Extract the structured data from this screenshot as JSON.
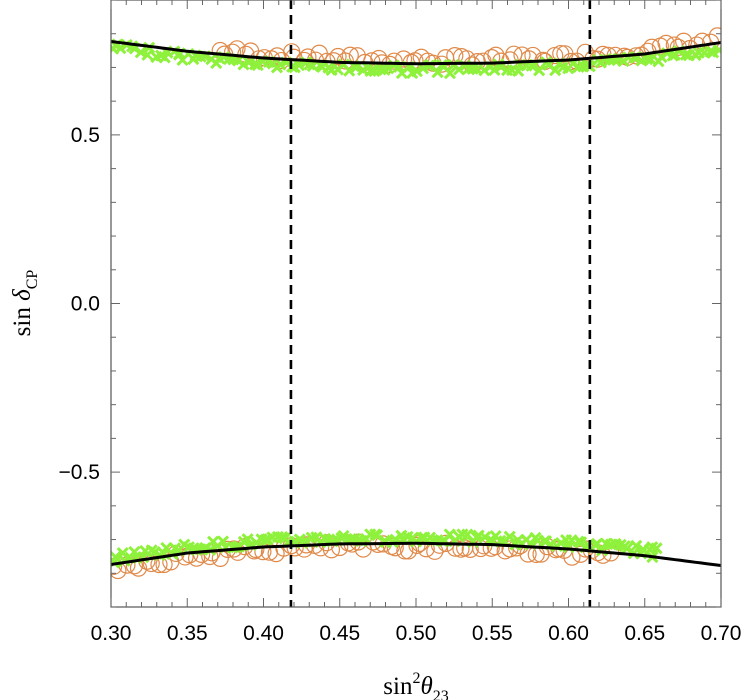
{
  "chart_data": {
    "type": "scatter",
    "xlabel": {
      "base": "sin",
      "sup": "2",
      "var": "θ",
      "sub": "23"
    },
    "ylabel": {
      "base": "sin ",
      "var": "δ",
      "sub": "CP"
    },
    "xlim": [
      0.3,
      0.7
    ],
    "ylim": [
      -0.9,
      0.9
    ],
    "x_ticks": [
      {
        "value": 0.3,
        "label": "0.30"
      },
      {
        "value": 0.35,
        "label": "0.35"
      },
      {
        "value": 0.4,
        "label": "0.40"
      },
      {
        "value": 0.45,
        "label": "0.45"
      },
      {
        "value": 0.5,
        "label": "0.50"
      },
      {
        "value": 0.55,
        "label": "0.55"
      },
      {
        "value": 0.6,
        "label": "0.60"
      },
      {
        "value": 0.65,
        "label": "0.65"
      },
      {
        "value": 0.7,
        "label": "0.70"
      }
    ],
    "y_ticks": [
      {
        "value": 0.5,
        "label": "0.5"
      },
      {
        "value": 0.0,
        "label": "0.0"
      },
      {
        "value": -0.5,
        "label": "−0.5"
      }
    ],
    "grid": false,
    "vertical_lines": [
      0.418,
      0.614
    ],
    "series": [
      {
        "marker": "circle",
        "color": "#e08a4a",
        "upper": {
          "x_start": 0.37,
          "x_end": 0.7,
          "count": 80
        },
        "lower": {
          "x_start": 0.3,
          "x_end": 0.63,
          "count": 80
        }
      },
      {
        "marker": "cross",
        "color": "#8ef23c",
        "upper": {
          "x_start": 0.3,
          "x_end": 0.7,
          "count": 130,
          "outliers": [
            [
              0.303,
              0.765
            ],
            [
              0.345,
              0.742
            ]
          ]
        },
        "lower": {
          "x_start": 0.3,
          "x_end": 0.66,
          "count": 130,
          "outliers": [
            [
              0.655,
              -0.752
            ]
          ]
        }
      }
    ],
    "curves": [
      {
        "color": "#000000",
        "points": [
          [
            0.3,
            0.777
          ],
          [
            0.35,
            0.748
          ],
          [
            0.4,
            0.728
          ],
          [
            0.45,
            0.715
          ],
          [
            0.5,
            0.711
          ],
          [
            0.55,
            0.713
          ],
          [
            0.6,
            0.722
          ],
          [
            0.65,
            0.74
          ],
          [
            0.7,
            0.774
          ]
        ]
      },
      {
        "color": "#000000",
        "points": [
          [
            0.3,
            -0.774
          ],
          [
            0.35,
            -0.74
          ],
          [
            0.4,
            -0.722
          ],
          [
            0.45,
            -0.713
          ],
          [
            0.5,
            -0.711
          ],
          [
            0.55,
            -0.715
          ],
          [
            0.6,
            -0.728
          ],
          [
            0.65,
            -0.748
          ],
          [
            0.7,
            -0.777
          ]
        ]
      }
    ]
  }
}
